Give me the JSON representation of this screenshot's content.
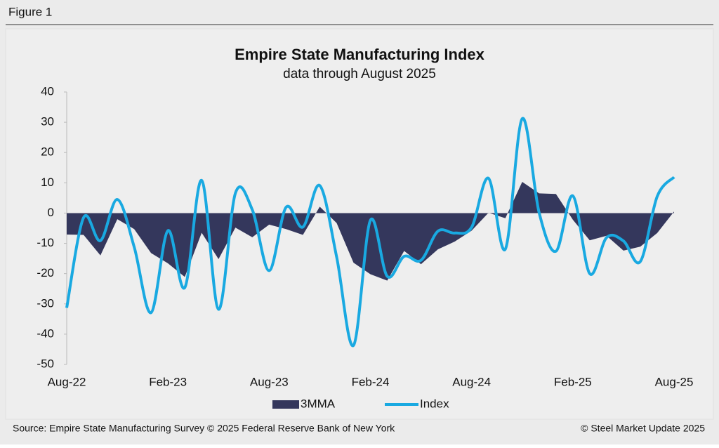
{
  "figure_label": "Figure 1",
  "footer": {
    "source": "Source: Empire State Manufacturing Survey © 2025 Federal Reserve Bank of New York",
    "credit": "© Steel Market Update 2025"
  },
  "chart_data": {
    "type": "line",
    "title": "Empire State Manufacturing Index",
    "subtitle": "data through August 2025",
    "categories": [
      "Aug-22",
      null,
      null,
      null,
      null,
      null,
      "Feb-23",
      null,
      null,
      null,
      null,
      null,
      "Aug-23",
      null,
      null,
      null,
      null,
      null,
      "Feb-24",
      null,
      null,
      null,
      null,
      null,
      "Aug-24",
      null,
      null,
      null,
      null,
      null,
      "Feb-25",
      null,
      null,
      null,
      null,
      null,
      "Aug-25"
    ],
    "series": [
      {
        "name": "3MMA",
        "type": "area",
        "color": "#34375c",
        "values": [
          -7.1,
          -7.2,
          -14.0,
          -2.0,
          -5.3,
          -13.2,
          -16.6,
          -21.1,
          -6.5,
          -15.2,
          -4.8,
          -8.0,
          -3.8,
          -5.3,
          -7.2,
          2.1,
          -3.3,
          -16.4,
          -20.2,
          -22.3,
          -12.5,
          -16.9,
          -12.0,
          -9.4,
          -5.8,
          0.1,
          -1.7,
          10.3,
          6.5,
          6.3,
          -2.2,
          -9.0,
          -7.5,
          -12.4,
          -11.1,
          -6.6,
          0.5
        ]
      },
      {
        "name": "Index",
        "type": "line",
        "color": "#19a9e1",
        "values": [
          -31.3,
          -1.5,
          -9.1,
          4.5,
          -11.2,
          -32.9,
          -5.8,
          -24.6,
          10.8,
          -31.8,
          6.6,
          1.1,
          -19.0,
          1.9,
          -4.6,
          9.1,
          -14.5,
          -43.7,
          -2.4,
          -20.9,
          -14.3,
          -15.6,
          -6.0,
          -6.6,
          -4.7,
          11.5,
          -11.9,
          31.2,
          0.2,
          -12.6,
          5.7,
          -20.0,
          -8.1,
          -9.2,
          -16.0,
          5.5,
          11.9
        ]
      }
    ],
    "ylim": [
      -50,
      40
    ],
    "yticks": [
      -50,
      -40,
      -30,
      -20,
      -10,
      0,
      10,
      20,
      30,
      40
    ],
    "legend": "bottom"
  }
}
